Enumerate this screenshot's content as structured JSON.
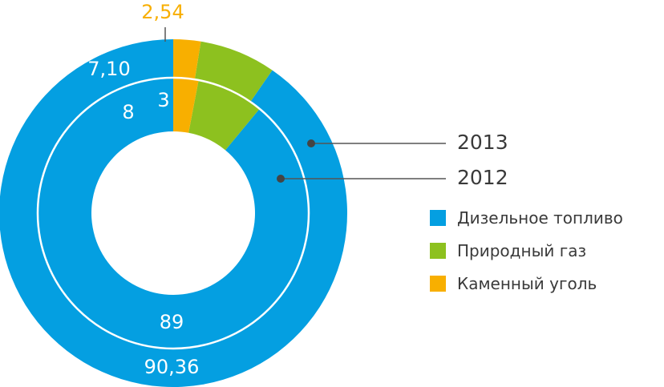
{
  "chart_data": {
    "type": "donut",
    "categories": [
      "Дизельное топливо",
      "Природный газ",
      "Каменный уголь"
    ],
    "colors": [
      "#049fe1",
      "#8dc11f",
      "#f8af00"
    ],
    "series": [
      {
        "name": "2013",
        "values": [
          90.36,
          7.1,
          2.54
        ],
        "labels": [
          "90,36",
          "7,10",
          "2,54"
        ]
      },
      {
        "name": "2012",
        "values": [
          89,
          8,
          3
        ],
        "labels": [
          "89",
          "8",
          "3"
        ]
      }
    ],
    "legend_position": "right"
  }
}
